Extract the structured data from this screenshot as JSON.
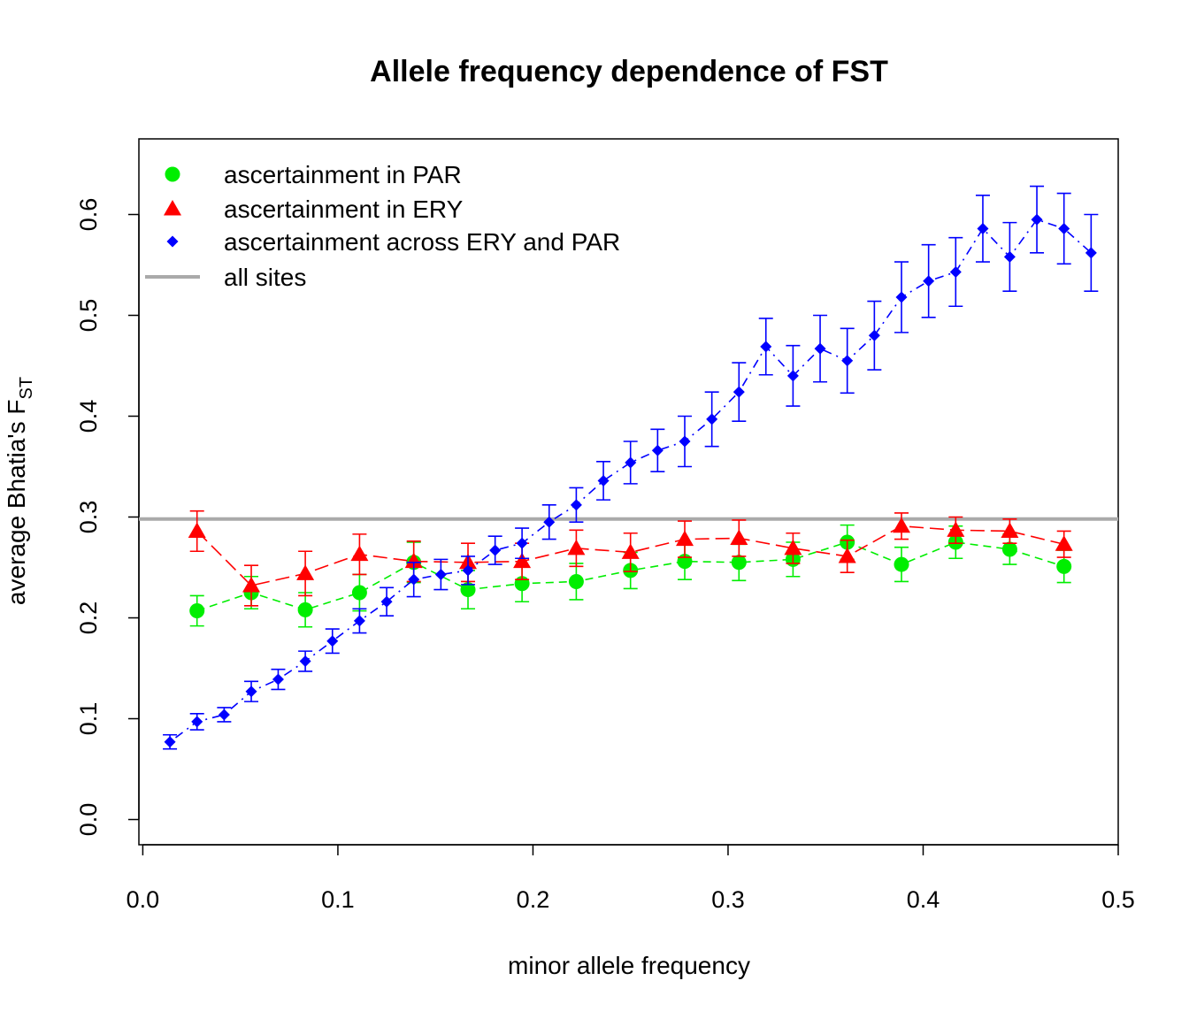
{
  "chart_data": {
    "type": "scatter",
    "title": "Allele frequency dependence of FST",
    "xlabel": "minor allele frequency",
    "ylabel": {
      "main": "average Bhatia's F",
      "subscript": "ST"
    },
    "xlim": [
      -0.002,
      0.5
    ],
    "ylim": [
      -0.025,
      0.675
    ],
    "xticks": [
      "0.0",
      "0.1",
      "0.2",
      "0.3",
      "0.4",
      "0.5"
    ],
    "yticks": [
      "0.0",
      "0.1",
      "0.2",
      "0.3",
      "0.4",
      "0.5",
      "0.6"
    ],
    "grid": false,
    "legend_position": "top-left",
    "legend": [
      {
        "label": "ascertainment in PAR",
        "color": "#00ee00",
        "marker": "circle"
      },
      {
        "label": "ascertainment in ERY",
        "color": "#ff0000",
        "marker": "triangle"
      },
      {
        "label": "ascertainment across ERY and PAR",
        "color": "#0000ff",
        "marker": "diamond"
      },
      {
        "label": "all sites",
        "color": "#aaaaaa",
        "marker": "line"
      }
    ],
    "reference_line": {
      "name": "all sites",
      "y": 0.298,
      "color": "#aaaaaa"
    },
    "series": [
      {
        "name": "ascertainment in PAR",
        "color": "#00ee00",
        "marker": "circle",
        "line_style": "dashed",
        "x": [
          0.0278,
          0.0556,
          0.0833,
          0.1111,
          0.1389,
          0.1667,
          0.1944,
          0.2222,
          0.25,
          0.2778,
          0.3056,
          0.3333,
          0.3611,
          0.3889,
          0.4167,
          0.4444,
          0.4722
        ],
        "y": [
          0.207,
          0.225,
          0.208,
          0.225,
          0.255,
          0.228,
          0.234,
          0.236,
          0.247,
          0.256,
          0.255,
          0.258,
          0.275,
          0.253,
          0.275,
          0.268,
          0.251
        ],
        "err_low": [
          0.192,
          0.209,
          0.191,
          0.207,
          0.235,
          0.209,
          0.216,
          0.218,
          0.229,
          0.238,
          0.237,
          0.241,
          0.258,
          0.236,
          0.259,
          0.253,
          0.235
        ],
        "err_high": [
          0.222,
          0.241,
          0.225,
          0.243,
          0.275,
          0.247,
          0.252,
          0.254,
          0.265,
          0.274,
          0.273,
          0.275,
          0.292,
          0.27,
          0.291,
          0.283,
          0.267
        ]
      },
      {
        "name": "ascertainment in ERY",
        "color": "#ff0000",
        "marker": "triangle",
        "line_style": "longdash",
        "x": [
          0.0278,
          0.0556,
          0.0833,
          0.1111,
          0.1389,
          0.1667,
          0.1944,
          0.2222,
          0.25,
          0.2778,
          0.3056,
          0.3333,
          0.3611,
          0.3889,
          0.4167,
          0.4444,
          0.4722
        ],
        "y": [
          0.286,
          0.232,
          0.244,
          0.263,
          0.256,
          0.255,
          0.256,
          0.269,
          0.265,
          0.278,
          0.279,
          0.269,
          0.261,
          0.291,
          0.287,
          0.286,
          0.273
        ],
        "err_low": [
          0.266,
          0.212,
          0.222,
          0.243,
          0.236,
          0.236,
          0.238,
          0.251,
          0.246,
          0.26,
          0.261,
          0.254,
          0.245,
          0.278,
          0.274,
          0.274,
          0.26
        ],
        "err_high": [
          0.306,
          0.252,
          0.266,
          0.283,
          0.276,
          0.274,
          0.274,
          0.287,
          0.284,
          0.296,
          0.297,
          0.284,
          0.277,
          0.304,
          0.3,
          0.298,
          0.286
        ]
      },
      {
        "name": "ascertainment across ERY and PAR",
        "color": "#0000ff",
        "marker": "diamond",
        "line_style": "dotdash",
        "x": [
          0.0139,
          0.0278,
          0.0417,
          0.0556,
          0.0694,
          0.0833,
          0.0972,
          0.1111,
          0.125,
          0.1389,
          0.1528,
          0.1667,
          0.1806,
          0.1944,
          0.2083,
          0.2222,
          0.2361,
          0.25,
          0.2639,
          0.2778,
          0.2917,
          0.3056,
          0.3194,
          0.3333,
          0.3472,
          0.3611,
          0.375,
          0.3889,
          0.4028,
          0.4167,
          0.4306,
          0.4444,
          0.4583,
          0.4722,
          0.4861
        ],
        "y": [
          0.077,
          0.097,
          0.104,
          0.127,
          0.139,
          0.157,
          0.177,
          0.197,
          0.216,
          0.238,
          0.243,
          0.247,
          0.267,
          0.274,
          0.295,
          0.312,
          0.336,
          0.354,
          0.366,
          0.375,
          0.397,
          0.424,
          0.469,
          0.44,
          0.467,
          0.455,
          0.48,
          0.518,
          0.534,
          0.543,
          0.586,
          0.558,
          0.595,
          0.586,
          0.562
        ],
        "err_low": [
          0.07,
          0.089,
          0.097,
          0.117,
          0.129,
          0.147,
          0.165,
          0.185,
          0.202,
          0.221,
          0.228,
          0.233,
          0.253,
          0.259,
          0.278,
          0.295,
          0.317,
          0.333,
          0.345,
          0.35,
          0.37,
          0.395,
          0.441,
          0.41,
          0.434,
          0.423,
          0.446,
          0.483,
          0.498,
          0.509,
          0.553,
          0.524,
          0.562,
          0.551,
          0.524
        ],
        "err_high": [
          0.084,
          0.105,
          0.111,
          0.137,
          0.149,
          0.167,
          0.189,
          0.209,
          0.23,
          0.255,
          0.258,
          0.261,
          0.281,
          0.289,
          0.312,
          0.329,
          0.355,
          0.375,
          0.387,
          0.4,
          0.424,
          0.453,
          0.497,
          0.47,
          0.5,
          0.487,
          0.514,
          0.553,
          0.57,
          0.577,
          0.619,
          0.592,
          0.628,
          0.621,
          0.6
        ]
      }
    ]
  }
}
